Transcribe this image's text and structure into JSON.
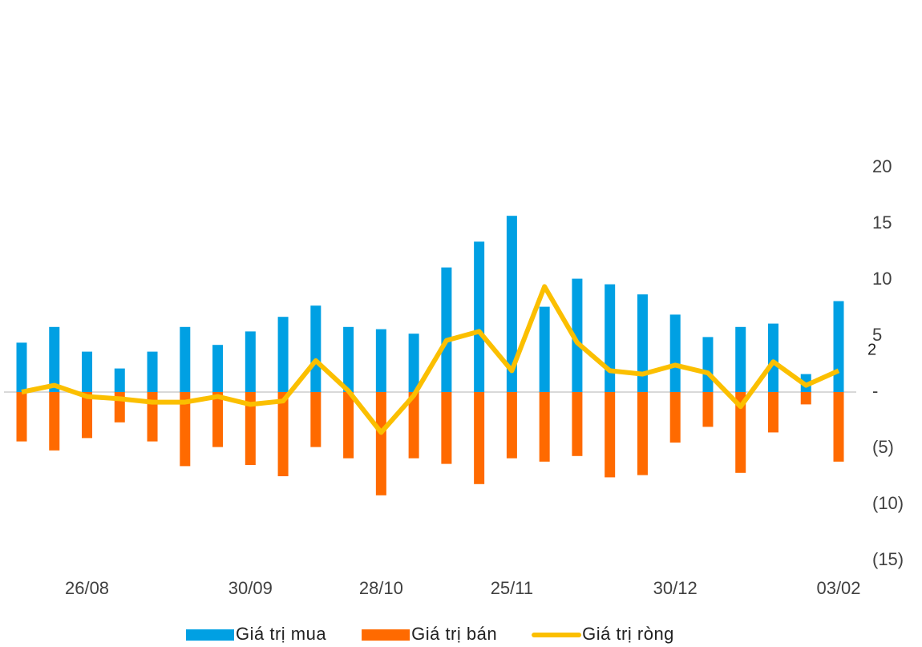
{
  "chart_data": {
    "type": "bar-line",
    "categories": [
      null,
      null,
      "26/08",
      null,
      null,
      null,
      null,
      "30/09",
      null,
      null,
      null,
      "28/10",
      null,
      null,
      null,
      "25/11",
      null,
      null,
      null,
      null,
      "30/12",
      null,
      null,
      null,
      null,
      "03/02"
    ],
    "series": [
      {
        "name": "Giá trị mua",
        "type": "bar",
        "color": "#00a0e3",
        "values": [
          4.4,
          5.8,
          3.6,
          2.1,
          3.6,
          5.8,
          4.2,
          5.4,
          6.7,
          7.7,
          5.8,
          5.6,
          5.2,
          11.1,
          13.4,
          15.7,
          7.6,
          10.1,
          9.6,
          8.7,
          6.9,
          4.9,
          5.8,
          6.1,
          1.6,
          8.1
        ]
      },
      {
        "name": "Giá trị bán",
        "type": "bar",
        "color": "#ff6a00",
        "values": [
          -4.4,
          -5.2,
          -4.1,
          -2.7,
          -4.4,
          -6.6,
          -4.9,
          -6.5,
          -7.5,
          -4.9,
          -5.9,
          -9.2,
          -5.9,
          -6.4,
          -8.2,
          -5.9,
          -6.2,
          -5.7,
          -7.6,
          -7.4,
          -4.5,
          -3.1,
          -7.2,
          -3.6,
          -1.1,
          -6.2
        ]
      },
      {
        "name": "Giá trị ròng",
        "type": "line",
        "color": "#fbbf00",
        "values": [
          0,
          0.6,
          -0.4,
          -0.6,
          -0.9,
          -0.9,
          -0.4,
          -1.1,
          -0.8,
          2.8,
          0.1,
          -3.6,
          -0.3,
          4.6,
          5.4,
          1.9,
          9.4,
          4.4,
          1.9,
          1.6,
          2.4,
          1.7,
          -1.3,
          2.7,
          0.6,
          1.9
        ],
        "value_labels": [
          null,
          null,
          null,
          null,
          null,
          null,
          null,
          null,
          null,
          null,
          null,
          null,
          null,
          null,
          null,
          null,
          null,
          null,
          null,
          null,
          null,
          null,
          null,
          null,
          null,
          "2"
        ]
      }
    ],
    "ylim": [
      -15,
      20
    ],
    "yticks": [
      20,
      15,
      10,
      5,
      {
        "value": 0,
        "label": "-"
      },
      {
        "value": -5,
        "label": "(5)"
      },
      {
        "value": -10,
        "label": "(10)"
      },
      {
        "value": -15,
        "label": "(15)"
      }
    ],
    "legend": "bottom"
  }
}
